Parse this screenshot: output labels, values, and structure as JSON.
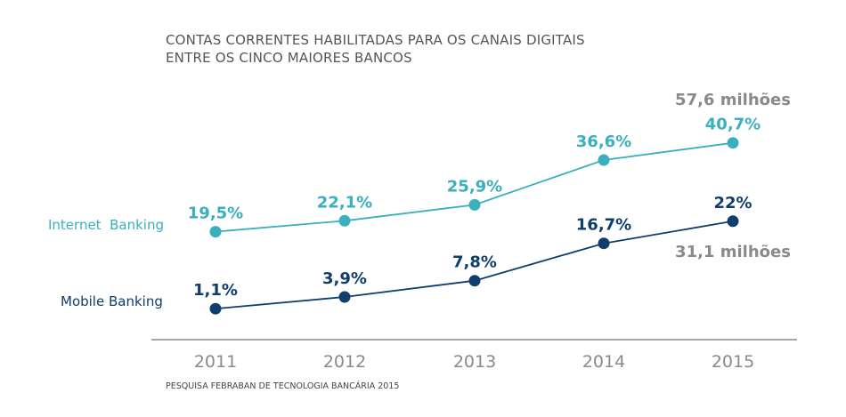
{
  "chart_data": {
    "type": "line",
    "title_line1": "CONTAS CORRENTES HABILITADAS PARA OS CANAIS DIGITAIS",
    "title_line2": "ENTRE OS CINCO MAIORES BANCOS",
    "categories": [
      "2011",
      "2012",
      "2013",
      "2014",
      "2015"
    ],
    "ylim": [
      0,
      45
    ],
    "series": [
      {
        "name": "Internet  Banking",
        "color": "#3ab0bf",
        "values": [
          19.5,
          22.1,
          25.9,
          36.6,
          40.7
        ],
        "labels": [
          "19,5%",
          "22,1%",
          "25,9%",
          "36,6%",
          "40,7%"
        ],
        "total": "57,6 milhões"
      },
      {
        "name": "Mobile Banking",
        "color": "#0f3d6e",
        "values": [
          1.1,
          3.9,
          7.8,
          16.7,
          22
        ],
        "labels": [
          "1,1%",
          "3,9%",
          "7,8%",
          "16,7%",
          "22%"
        ],
        "total": "31,1 milhões"
      }
    ],
    "source": "PESQUISA FEBRABAN DE TECNOLOGIA BANCÁRIA 2015"
  }
}
